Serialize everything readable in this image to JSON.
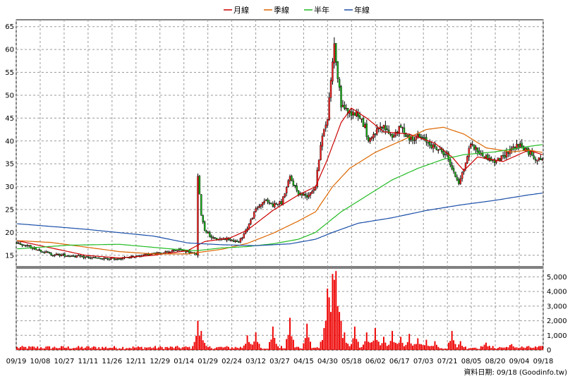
{
  "chart_data": {
    "type": "candlestick-with-volume",
    "legend": [
      {
        "name": "月線",
        "color": "#cc0000"
      },
      {
        "name": "季線",
        "color": "#dd6600"
      },
      {
        "name": "半年",
        "color": "#22bb22"
      },
      {
        "name": "年線",
        "color": "#1a4fa8"
      }
    ],
    "price_axis": {
      "ylim": [
        12.5,
        66.5
      ],
      "ticks": [
        15,
        20,
        25,
        30,
        35,
        40,
        45,
        50,
        55,
        60,
        65
      ]
    },
    "volume_axis": {
      "ylim": [
        0,
        5600
      ],
      "ticks": [
        0,
        1000,
        2000,
        3000,
        4000,
        5000
      ],
      "tick_labels": [
        "0",
        "1,000",
        "2,000",
        "3,000",
        "4,000",
        "5,000"
      ]
    },
    "x_ticks": [
      "09/19",
      "10/08",
      "10/27",
      "11/11",
      "11/26",
      "12/11",
      "12/29",
      "01/14",
      "01/29",
      "02/24",
      "03/12",
      "03/27",
      "04/15",
      "04/30",
      "05/18",
      "06/02",
      "06/17",
      "07/03",
      "07/21",
      "08/05",
      "08/20",
      "09/04",
      "09/18"
    ],
    "close_anchors": [
      [
        0,
        17.8
      ],
      [
        8,
        16.8
      ],
      [
        20,
        15.2
      ],
      [
        35,
        14.8
      ],
      [
        50,
        14.2
      ],
      [
        60,
        14.3
      ],
      [
        70,
        14.8
      ],
      [
        85,
        15.6
      ],
      [
        95,
        16.2
      ],
      [
        100,
        15.8
      ],
      [
        105,
        15.2
      ],
      [
        106,
        32
      ],
      [
        108,
        24
      ],
      [
        110,
        20.5
      ],
      [
        115,
        18.6
      ],
      [
        125,
        18.5
      ],
      [
        130,
        17.8
      ],
      [
        135,
        21
      ],
      [
        140,
        25
      ],
      [
        145,
        27
      ],
      [
        150,
        26
      ],
      [
        155,
        26.5
      ],
      [
        160,
        32
      ],
      [
        165,
        28.5
      ],
      [
        170,
        28
      ],
      [
        175,
        30
      ],
      [
        178,
        39.5
      ],
      [
        182,
        45
      ],
      [
        185,
        58
      ],
      [
        186,
        61
      ],
      [
        188,
        54
      ],
      [
        190,
        48
      ],
      [
        195,
        46
      ],
      [
        200,
        46
      ],
      [
        204,
        43
      ],
      [
        206,
        40
      ],
      [
        210,
        42
      ],
      [
        215,
        43
      ],
      [
        220,
        41
      ],
      [
        225,
        43
      ],
      [
        230,
        40.5
      ],
      [
        235,
        41
      ],
      [
        240,
        40
      ],
      [
        245,
        38.5
      ],
      [
        252,
        37
      ],
      [
        256,
        33
      ],
      [
        259,
        31
      ],
      [
        262,
        34
      ],
      [
        266,
        39.5
      ],
      [
        272,
        37
      ],
      [
        280,
        35.5
      ],
      [
        285,
        36.5
      ],
      [
        290,
        38.5
      ],
      [
        295,
        39
      ],
      [
        300,
        37.5
      ],
      [
        305,
        36
      ],
      [
        308,
        36
      ]
    ],
    "sma": {
      "月線": [
        [
          0,
          18.2
        ],
        [
          20,
          16.6
        ],
        [
          40,
          15.0
        ],
        [
          60,
          14.4
        ],
        [
          80,
          15.0
        ],
        [
          100,
          16.0
        ],
        [
          110,
          18.0
        ],
        [
          125,
          18.8
        ],
        [
          135,
          20.5
        ],
        [
          150,
          24.8
        ],
        [
          165,
          28.2
        ],
        [
          175,
          30.0
        ],
        [
          182,
          36.0
        ],
        [
          190,
          44.0
        ],
        [
          196,
          47.2
        ],
        [
          205,
          45.0
        ],
        [
          215,
          42.0
        ],
        [
          230,
          41.5
        ],
        [
          245,
          39.5
        ],
        [
          255,
          36.5
        ],
        [
          262,
          33.5
        ],
        [
          270,
          36.5
        ],
        [
          285,
          35.5
        ],
        [
          300,
          38.0
        ],
        [
          308,
          37.0
        ]
      ],
      "季線": [
        [
          0,
          18.2
        ],
        [
          20,
          17.8
        ],
        [
          40,
          16.8
        ],
        [
          60,
          15.8
        ],
        [
          80,
          15.3
        ],
        [
          100,
          15.3
        ],
        [
          120,
          16.3
        ],
        [
          135,
          17.6
        ],
        [
          150,
          19.8
        ],
        [
          165,
          22.5
        ],
        [
          175,
          24.5
        ],
        [
          185,
          30.0
        ],
        [
          195,
          34.0
        ],
        [
          210,
          37.5
        ],
        [
          225,
          40.0
        ],
        [
          240,
          42.5
        ],
        [
          250,
          43.0
        ],
        [
          262,
          41.5
        ],
        [
          275,
          38.5
        ],
        [
          290,
          37.6
        ],
        [
          300,
          38.0
        ],
        [
          308,
          37.5
        ]
      ],
      "半年": [
        [
          0,
          16.4
        ],
        [
          30,
          17.2
        ],
        [
          60,
          17.4
        ],
        [
          90,
          16.4
        ],
        [
          105,
          16.0
        ],
        [
          120,
          16.6
        ],
        [
          135,
          16.9
        ],
        [
          150,
          17.5
        ],
        [
          165,
          18.5
        ],
        [
          175,
          20.0
        ],
        [
          190,
          24.5
        ],
        [
          205,
          28.0
        ],
        [
          220,
          31.5
        ],
        [
          235,
          34.0
        ],
        [
          250,
          36.0
        ],
        [
          262,
          37.0
        ],
        [
          280,
          37.6
        ],
        [
          300,
          38.8
        ],
        [
          308,
          39.2
        ]
      ],
      "年線": [
        [
          0,
          21.9
        ],
        [
          40,
          20.7
        ],
        [
          80,
          19.2
        ],
        [
          100,
          17.7
        ],
        [
          120,
          17.3
        ],
        [
          140,
          17.1
        ],
        [
          160,
          17.5
        ],
        [
          175,
          18.5
        ],
        [
          185,
          20.0
        ],
        [
          200,
          22.0
        ],
        [
          220,
          23.2
        ],
        [
          240,
          24.8
        ],
        [
          260,
          26.0
        ],
        [
          280,
          27.0
        ],
        [
          300,
          28.2
        ],
        [
          308,
          28.6
        ]
      ]
    },
    "volume_spikes": [
      [
        106,
        2000
      ],
      [
        108,
        1300
      ],
      [
        135,
        1000
      ],
      [
        140,
        1200
      ],
      [
        150,
        1600
      ],
      [
        160,
        2200
      ],
      [
        170,
        1800
      ],
      [
        180,
        1500
      ],
      [
        181,
        2000
      ],
      [
        182,
        4200
      ],
      [
        183,
        3600
      ],
      [
        184,
        2600
      ],
      [
        185,
        5200
      ],
      [
        186,
        4800
      ],
      [
        187,
        5400
      ],
      [
        188,
        3000
      ],
      [
        189,
        2600
      ],
      [
        190,
        2000
      ],
      [
        192,
        1200
      ],
      [
        198,
        1600
      ],
      [
        205,
        1200
      ],
      [
        210,
        1500
      ],
      [
        215,
        900
      ],
      [
        220,
        1300
      ],
      [
        225,
        900
      ],
      [
        230,
        1100
      ],
      [
        235,
        800
      ],
      [
        240,
        700
      ],
      [
        245,
        600
      ],
      [
        255,
        1300
      ],
      [
        260,
        600
      ],
      [
        275,
        500
      ],
      [
        290,
        400
      ]
    ]
  },
  "source_label": "資料日期: 09/18 (Goodinfo.tw)"
}
